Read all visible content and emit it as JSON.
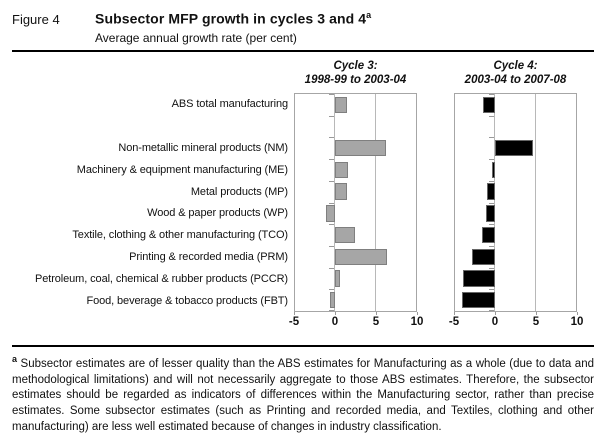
{
  "figure": {
    "label": "Figure 4",
    "title": "Subsector MFP growth in cycles 3 and 4",
    "title_superscript": "a",
    "subtitle": "Average annual growth rate (per cent)"
  },
  "chart_data": {
    "type": "bar",
    "orientation": "horizontal",
    "categories": [
      "ABS total manufacturing",
      "Non-metallic mineral products (NM)",
      "Machinery & equipment manufacturing (ME)",
      "Metal products (MP)",
      "Wood & paper products (WP)",
      "Textile, clothing & other manufacturing (TCO)",
      "Printing & recorded media (PRM)",
      "Petroleum, coal, chemical & rubber products (PCCR)",
      "Food, beverage & tobacco products (FBT)"
    ],
    "series": [
      {
        "name": "Cycle 3:",
        "period": "1998-99 to 2003-04",
        "color": "#a6a6a6",
        "border_color": "#7f7f7f",
        "values": [
          1.4,
          6.3,
          1.6,
          1.5,
          -1.2,
          2.5,
          6.4,
          0.6,
          -0.6
        ]
      },
      {
        "name": "Cycle 4:",
        "period": "2003-04 to 2007-08",
        "color": "#000000",
        "border_color": "#666666",
        "values": [
          -1.5,
          4.7,
          -0.4,
          -1.0,
          -1.2,
          -1.7,
          -2.9,
          -4.0,
          -4.1
        ]
      }
    ],
    "xlim": [
      -5,
      10
    ],
    "xticks": [
      -5,
      0,
      5,
      10
    ],
    "gridlines": [
      0,
      5
    ],
    "gap_after_first_category": true,
    "grid_color": "#b8b8b8",
    "tick_color": "#999999"
  },
  "footnote": {
    "marker": "a",
    "text": "Subsector estimates are of lesser quality than the ABS estimates for Manufacturing as a whole (due to data and methodological limitations) and will not necessarily aggregate to those ABS estimates. Therefore, the subsector estimates should be regarded as indicators of differences within the Manufacturing sector, rather than precise estimates. Some subsector estimates (such as Printing and recorded media, and Textiles, clothing and other manufacturing) are less well estimated because of changes in industry classification."
  }
}
